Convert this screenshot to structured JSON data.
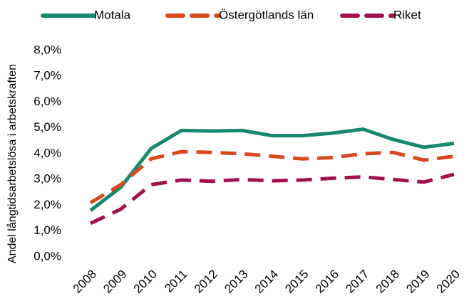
{
  "chart_data": {
    "type": "line",
    "y_label": "Andel långtidsarbetslösa i arbetskraften",
    "categories": [
      "2008",
      "2009",
      "2010",
      "2011",
      "2012",
      "2013",
      "2014",
      "2015",
      "2016",
      "2017",
      "2018",
      "2019",
      "2020"
    ],
    "series": [
      {
        "name": "Motala",
        "color": "#17876f",
        "style": "solid",
        "values": [
          1.8,
          2.7,
          4.2,
          4.9,
          4.88,
          4.9,
          4.7,
          4.7,
          4.8,
          4.95,
          4.55,
          4.25,
          4.4
        ]
      },
      {
        "name": "Östergötlands län",
        "color": "#d9481c",
        "style": "dashed",
        "values": [
          2.1,
          2.8,
          3.8,
          4.08,
          4.05,
          4.0,
          3.9,
          3.8,
          3.85,
          4.0,
          4.05,
          3.75,
          3.9
        ]
      },
      {
        "name": "Riket",
        "color": "#a3104d",
        "style": "dashed",
        "values": [
          1.3,
          1.85,
          2.8,
          2.98,
          2.93,
          3.0,
          2.95,
          2.98,
          3.05,
          3.1,
          3.0,
          2.9,
          3.2
        ]
      }
    ],
    "ylim": [
      0,
      8
    ],
    "yticks": [
      {
        "value": 0,
        "label": "0,0%"
      },
      {
        "value": 1,
        "label": "1,0%"
      },
      {
        "value": 2,
        "label": "2,0%"
      },
      {
        "value": 3,
        "label": "3,0%"
      },
      {
        "value": 4,
        "label": "4,0%"
      },
      {
        "value": 5,
        "label": "5,0%"
      },
      {
        "value": 6,
        "label": "6,0%"
      },
      {
        "value": 7,
        "label": "7,0%"
      },
      {
        "value": 8,
        "label": "8,0%"
      }
    ],
    "grid": false,
    "legend": "top"
  }
}
